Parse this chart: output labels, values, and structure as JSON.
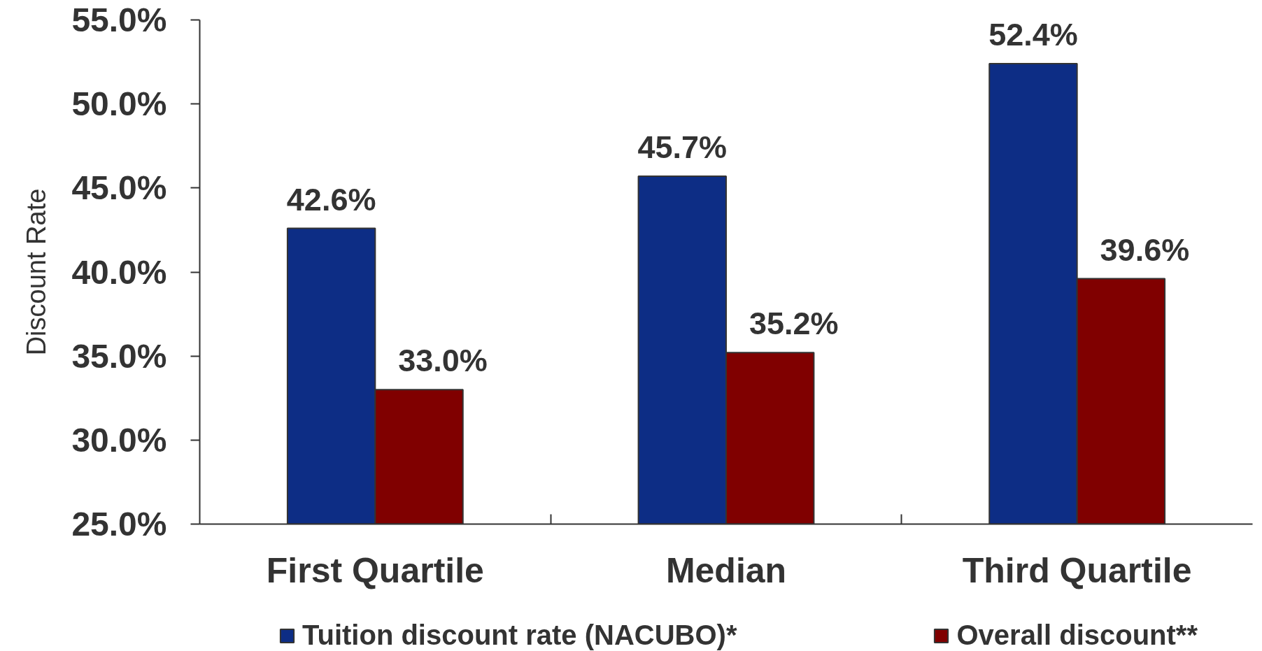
{
  "chart_data": {
    "type": "bar",
    "ylabel": "Discount Rate",
    "categories": [
      "First Quartile",
      "Median",
      "Third Quartile"
    ],
    "series": [
      {
        "name": "Tuition discount rate (NACUBO)*",
        "color": "#0d2d85",
        "values": [
          42.6,
          45.7,
          52.4
        ],
        "value_labels": [
          "42.6%",
          "45.7%",
          "52.4%"
        ]
      },
      {
        "name": "Overall discount**",
        "color": "#800000",
        "values": [
          33.0,
          35.2,
          39.6
        ],
        "value_labels": [
          "33.0%",
          "35.2%",
          "39.6%"
        ]
      }
    ],
    "ylim": [
      25,
      55
    ],
    "yticks": [
      {
        "value": 25,
        "label": "25.0%"
      },
      {
        "value": 30,
        "label": "30.0%"
      },
      {
        "value": 35,
        "label": "35.0%"
      },
      {
        "value": 40,
        "label": "40.0%"
      },
      {
        "value": 45,
        "label": "45.0%"
      },
      {
        "value": 50,
        "label": "50.0%"
      },
      {
        "value": 55,
        "label": "55.0%"
      }
    ],
    "grid": false,
    "legend": "bottom"
  }
}
